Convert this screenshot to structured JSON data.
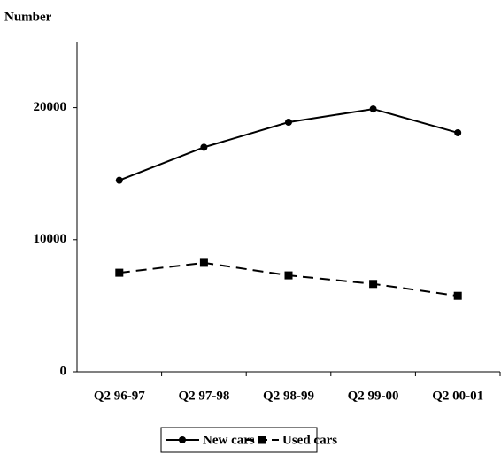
{
  "chart_data": {
    "type": "line",
    "y_label": "Number",
    "categories": [
      "Q2 96-97",
      "Q2 97-98",
      "Q2 98-99",
      "Q2 99-00",
      "Q2 00-01"
    ],
    "series": [
      {
        "name": "New cars",
        "color": "#000000",
        "dash": "solid",
        "marker": "circle",
        "values": [
          14500,
          17000,
          18900,
          19900,
          18100
        ]
      },
      {
        "name": "Used cars",
        "color": "#000000",
        "dash": "dashed",
        "marker": "square",
        "values": [
          7500,
          8250,
          7300,
          6650,
          5750
        ]
      }
    ],
    "ylim": [
      0,
      25000
    ],
    "yticks": [
      0,
      10000,
      20000
    ],
    "grid": false
  }
}
